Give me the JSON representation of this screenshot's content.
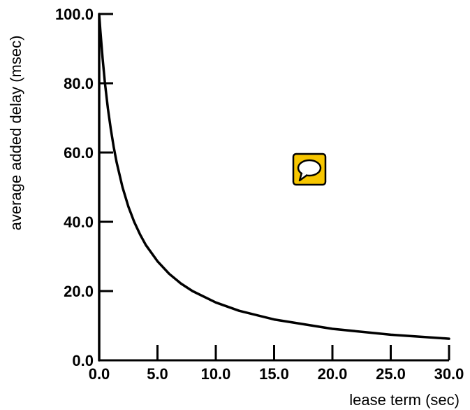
{
  "chart_data": {
    "type": "line",
    "title": "",
    "xlabel": "lease term (sec)",
    "ylabel": "average added delay (msec)",
    "xlim": [
      0,
      30
    ],
    "ylim": [
      0,
      100
    ],
    "x_ticks": [
      "0.0",
      "5.0",
      "10.0",
      "15.0",
      "20.0",
      "25.0",
      "30.0"
    ],
    "y_ticks": [
      "0.0",
      "20.0",
      "40.0",
      "60.0",
      "80.0",
      "100.0"
    ],
    "grid": false,
    "series": [
      {
        "x": [
          0.0,
          0.1,
          0.3,
          0.5,
          0.75,
          1.0,
          1.25,
          1.5,
          2.0,
          2.5,
          3.0,
          3.5,
          4.0,
          5.0,
          6.0,
          7.0,
          8.0,
          10.0,
          12.0,
          15.0,
          20.0,
          25.0,
          30.0
        ],
        "y": [
          100.0,
          95.2,
          87.0,
          80.0,
          72.7,
          66.7,
          61.5,
          57.1,
          50.0,
          44.4,
          40.0,
          36.4,
          33.3,
          28.6,
          25.0,
          22.2,
          20.0,
          16.7,
          14.3,
          11.8,
          9.1,
          7.4,
          6.25
        ]
      }
    ],
    "annotation_icon": "speech-bubble-icon",
    "annotation_icon_color": "#f7c600"
  }
}
